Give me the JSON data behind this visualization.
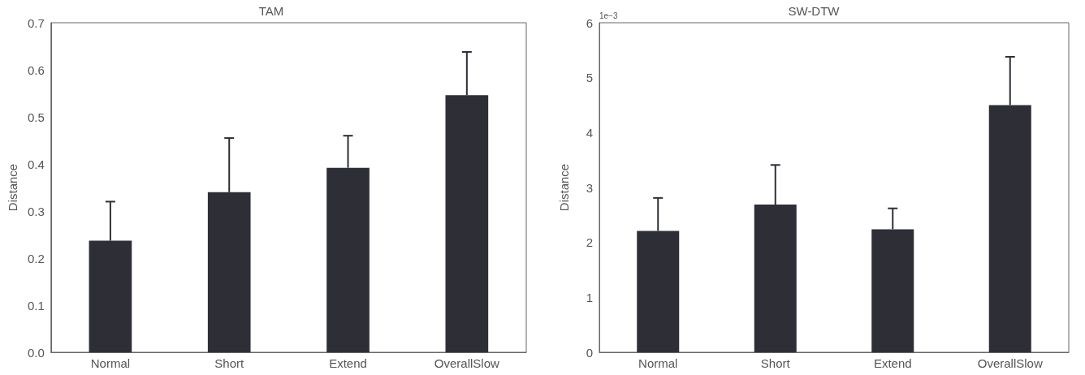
{
  "chart_data": [
    {
      "type": "bar",
      "title": "TAM",
      "ylabel": "Distance",
      "categories": [
        "Normal",
        "Short",
        "Extend",
        "OverallSlow"
      ],
      "values": [
        0.237,
        0.34,
        0.392,
        0.546
      ],
      "errors": [
        [
          0.237,
          0.32
        ],
        [
          0.34,
          0.455
        ],
        [
          0.392,
          0.46
        ],
        [
          0.546,
          0.638
        ]
      ],
      "color": "#2e2f36",
      "ylim": [
        0,
        0.7
      ],
      "yticks": [
        {
          "value": 0,
          "label": "0.0"
        },
        0.1,
        0.2,
        0.3,
        0.4,
        0.5,
        0.6,
        0.7
      ],
      "grid": false
    },
    {
      "type": "bar",
      "title": "SW-DTW",
      "ylabel": "Distance",
      "annotations": [
        "1e−3"
      ],
      "categories": [
        "Normal",
        "Short",
        "Extend",
        "OverallSlow"
      ],
      "values": [
        2.21,
        2.69,
        2.24,
        4.5
      ],
      "errors": [
        [
          2.21,
          2.81
        ],
        [
          2.69,
          3.41
        ],
        [
          2.24,
          2.62
        ],
        [
          4.5,
          5.38
        ]
      ],
      "color": "#2e2f36",
      "ylim": [
        0,
        6
      ],
      "yticks": [
        0,
        1,
        2,
        3,
        4,
        5,
        6
      ],
      "grid": false
    }
  ]
}
